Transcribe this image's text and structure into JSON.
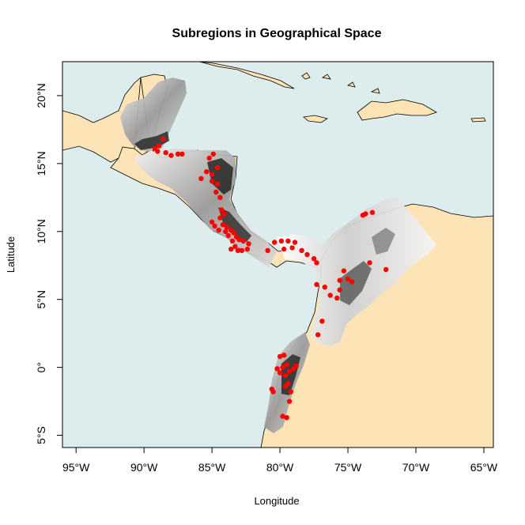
{
  "title": "Subregions in Geographical Space",
  "xlabel": "Longitude",
  "ylabel": "Latitude",
  "colors": {
    "ocean": "#ddeced",
    "land": "#fde4b7",
    "points": "#ff0000",
    "frame": "#000000"
  },
  "x_ticks": [
    {
      "v": -95,
      "label": "95°W"
    },
    {
      "v": -90,
      "label": "90°W"
    },
    {
      "v": -85,
      "label": "85°W"
    },
    {
      "v": -80,
      "label": "80°W"
    },
    {
      "v": -75,
      "label": "75°W"
    },
    {
      "v": -70,
      "label": "70°W"
    },
    {
      "v": -65,
      "label": "65°W"
    }
  ],
  "y_ticks": [
    {
      "v": -5,
      "label": "5°S"
    },
    {
      "v": 0,
      "label": "0°"
    },
    {
      "v": 5,
      "label": "5°N"
    },
    {
      "v": 10,
      "label": "10°N"
    },
    {
      "v": 15,
      "label": "15°N"
    },
    {
      "v": 20,
      "label": "20°N"
    }
  ],
  "chart_data": {
    "type": "scatter",
    "title": "Subregions in Geographical Space",
    "xlabel": "Longitude",
    "ylabel": "Latitude",
    "xlim": [
      -96,
      -64.3
    ],
    "ylim": [
      -5.9,
      22.5
    ],
    "background_layers": [
      "ocean",
      "land (coastlines)",
      "grayscale suitability raster"
    ],
    "points": [
      [
        -89.2,
        16.1
      ],
      [
        -88.9,
        16.3
      ],
      [
        -88.6,
        16.8
      ],
      [
        -89.0,
        15.9
      ],
      [
        -88.4,
        15.8
      ],
      [
        -88.0,
        15.6
      ],
      [
        -87.5,
        15.7
      ],
      [
        -87.2,
        15.7
      ],
      [
        -84.9,
        15.7
      ],
      [
        -85.2,
        15.4
      ],
      [
        -85.4,
        14.4
      ],
      [
        -85.0,
        14.2
      ],
      [
        -84.6,
        14.7
      ],
      [
        -85.8,
        13.9
      ],
      [
        -85.0,
        13.7
      ],
      [
        -84.6,
        13.5
      ],
      [
        -84.7,
        12.9
      ],
      [
        -84.4,
        12.5
      ],
      [
        -84.3,
        11.6
      ],
      [
        -84.1,
        11.3
      ],
      [
        -84.4,
        11.0
      ],
      [
        -85.0,
        10.7
      ],
      [
        -84.8,
        10.4
      ],
      [
        -84.2,
        10.5
      ],
      [
        -83.9,
        10.3
      ],
      [
        -84.5,
        10.1
      ],
      [
        -84.0,
        10.0
      ],
      [
        -83.6,
        10.1
      ],
      [
        -83.4,
        9.9
      ],
      [
        -83.8,
        9.7
      ],
      [
        -83.2,
        9.6
      ],
      [
        -83.0,
        9.4
      ],
      [
        -83.5,
        9.3
      ],
      [
        -82.7,
        9.3
      ],
      [
        -82.3,
        9.1
      ],
      [
        -83.3,
        8.9
      ],
      [
        -83.6,
        8.7
      ],
      [
        -83.1,
        8.6
      ],
      [
        -82.8,
        8.6
      ],
      [
        -82.4,
        8.7
      ],
      [
        -80.9,
        8.6
      ],
      [
        -80.4,
        9.2
      ],
      [
        -79.9,
        9.3
      ],
      [
        -79.4,
        9.3
      ],
      [
        -78.9,
        9.2
      ],
      [
        -79.7,
        8.7
      ],
      [
        -79.1,
        8.8
      ],
      [
        -78.4,
        8.6
      ],
      [
        -78.0,
        8.3
      ],
      [
        -77.5,
        8.0
      ],
      [
        -77.3,
        7.7
      ],
      [
        -77.3,
        6.1
      ],
      [
        -76.3,
        5.3
      ],
      [
        -75.6,
        5.7
      ],
      [
        -75.6,
        6.4
      ],
      [
        -75.0,
        6.5
      ],
      [
        -74.7,
        6.3
      ],
      [
        -75.3,
        7.1
      ],
      [
        -73.9,
        11.2
      ],
      [
        -73.7,
        11.3
      ],
      [
        -73.2,
        11.4
      ],
      [
        -73.4,
        7.7
      ],
      [
        -72.2,
        7.2
      ],
      [
        -76.7,
        5.9
      ],
      [
        -75.8,
        5.1
      ],
      [
        -76.9,
        3.4
      ],
      [
        -77.2,
        2.4
      ],
      [
        -80.0,
        0.8
      ],
      [
        -79.7,
        0.9
      ],
      [
        -79.5,
        0.2
      ],
      [
        -79.8,
        0.0
      ],
      [
        -79.3,
        -0.3
      ],
      [
        -79.0,
        -0.1
      ],
      [
        -78.8,
        0.1
      ],
      [
        -79.6,
        -0.6
      ],
      [
        -79.4,
        -1.2
      ],
      [
        -79.2,
        -1.8
      ],
      [
        -79.6,
        -1.4
      ],
      [
        -80.0,
        -0.4
      ],
      [
        -80.6,
        -1.6
      ],
      [
        -80.5,
        -1.8
      ],
      [
        -79.3,
        -2.5
      ],
      [
        -79.8,
        -3.6
      ],
      [
        -79.5,
        -3.7
      ],
      [
        -80.2,
        -0.1
      ]
    ]
  }
}
